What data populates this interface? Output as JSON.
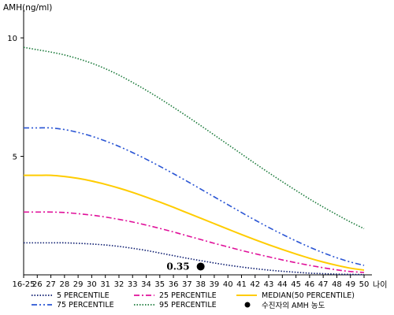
{
  "chart_data": {
    "type": "line",
    "ylabel": "AMH(ng/ml)",
    "xlabel": "나이",
    "x": [
      "16-25",
      "26",
      "27",
      "28",
      "29",
      "30",
      "31",
      "32",
      "33",
      "34",
      "35",
      "36",
      "37",
      "38",
      "39",
      "40",
      "41",
      "42",
      "43",
      "44",
      "45",
      "46",
      "47",
      "48",
      "49",
      "50"
    ],
    "yticks": [
      5,
      10
    ],
    "ylim": [
      0,
      11
    ],
    "grid": false,
    "legend_position": "bottom",
    "series": [
      {
        "name": "5 PERCENTILE",
        "color": "#0a1a6e",
        "dash": "dotted",
        "values": [
          1.35,
          1.35,
          1.35,
          1.35,
          1.33,
          1.3,
          1.26,
          1.2,
          1.12,
          1.03,
          0.92,
          0.81,
          0.7,
          0.6,
          0.5,
          0.41,
          0.33,
          0.26,
          0.2,
          0.15,
          0.11,
          0.07,
          0.05,
          0.03,
          0.02,
          0.01
        ]
      },
      {
        "name": "25 PERCENTILE",
        "color": "#e0109a",
        "dash": "dashdot",
        "values": [
          2.65,
          2.65,
          2.65,
          2.63,
          2.58,
          2.52,
          2.44,
          2.34,
          2.23,
          2.1,
          1.96,
          1.81,
          1.65,
          1.49,
          1.33,
          1.18,
          1.03,
          0.89,
          0.76,
          0.63,
          0.51,
          0.4,
          0.3,
          0.21,
          0.14,
          0.1
        ]
      },
      {
        "name": "MEDIAN(50 PERCENTILE)",
        "color": "#ffcc00",
        "dash": "solid",
        "values": [
          4.2,
          4.2,
          4.2,
          4.15,
          4.07,
          3.96,
          3.82,
          3.66,
          3.48,
          3.28,
          3.07,
          2.85,
          2.62,
          2.39,
          2.16,
          1.93,
          1.7,
          1.48,
          1.27,
          1.07,
          0.88,
          0.7,
          0.54,
          0.4,
          0.28,
          0.2
        ]
      },
      {
        "name": "75 PERCENTILE",
        "color": "#2a55d4",
        "dash": "dashdotdot",
        "values": [
          6.2,
          6.2,
          6.2,
          6.13,
          6.01,
          5.85,
          5.65,
          5.42,
          5.16,
          4.88,
          4.58,
          4.27,
          3.95,
          3.62,
          3.29,
          2.96,
          2.63,
          2.31,
          2.0,
          1.71,
          1.43,
          1.17,
          0.93,
          0.72,
          0.54,
          0.4
        ]
      },
      {
        "name": "95 PERCENTILE",
        "color": "#1a7a3a",
        "dash": "dotted",
        "values": [
          9.6,
          9.5,
          9.4,
          9.28,
          9.12,
          8.93,
          8.7,
          8.43,
          8.12,
          7.79,
          7.44,
          7.07,
          6.69,
          6.3,
          5.9,
          5.5,
          5.1,
          4.7,
          4.31,
          3.93,
          3.56,
          3.2,
          2.86,
          2.54,
          2.23,
          1.95
        ]
      }
    ],
    "marker": {
      "name": "수진자의 AMH 농도",
      "x": "38",
      "y": 0.35,
      "label": "0.35"
    }
  }
}
